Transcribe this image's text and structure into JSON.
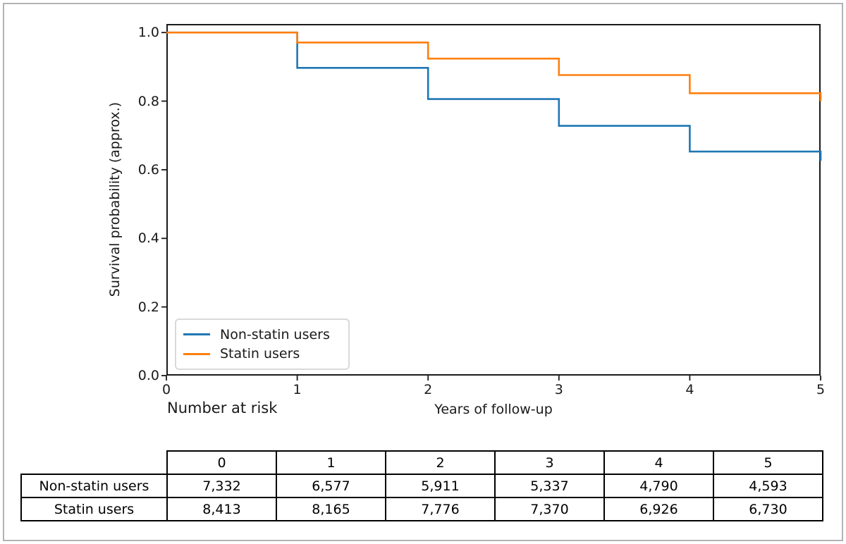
{
  "figure": {
    "background": "#ffffff",
    "frame_border_color": "#b2b2b7",
    "text_color": "#1a1a1a"
  },
  "labels": {
    "number_at_risk": "Number at risk"
  },
  "chart_data": {
    "type": "line",
    "subtype": "step-after-survival-curve",
    "title": "",
    "xlabel": "Years of follow-up",
    "ylabel": "Survival probability (approx.)",
    "xlim": [
      0,
      5
    ],
    "ylim": [
      0,
      1.025
    ],
    "grid": false,
    "legend_position": "lower-left",
    "x": [
      0,
      1,
      2,
      3,
      4,
      5
    ],
    "xticks": [
      0,
      1,
      2,
      3,
      4,
      5
    ],
    "xtick_labels": [
      "0",
      "1",
      "2",
      "3",
      "4",
      "5"
    ],
    "ytick_values": [
      0.0,
      0.2,
      0.4,
      0.6,
      0.8,
      1.0
    ],
    "ytick_labels": [
      "0.0",
      "0.2",
      "0.4",
      "0.6",
      "0.8",
      "1.0"
    ],
    "series": [
      {
        "name": "Non-statin users",
        "color": "#1f77b4",
        "values": [
          1.0,
          0.897,
          0.806,
          0.728,
          0.653,
          0.626
        ]
      },
      {
        "name": "Statin users",
        "color": "#ff7f0e",
        "values": [
          1.0,
          0.971,
          0.924,
          0.876,
          0.823,
          0.8
        ]
      }
    ]
  },
  "risk_table": {
    "columns": [
      "0",
      "1",
      "2",
      "3",
      "4",
      "5"
    ],
    "rows": [
      {
        "label": "Non-statin users",
        "values": [
          "7,332",
          "6,577",
          "5,911",
          "5,337",
          "4,790",
          "4,593"
        ]
      },
      {
        "label": "Statin users",
        "values": [
          "8,413",
          "8,165",
          "7,776",
          "7,370",
          "6,926",
          "6,730"
        ]
      }
    ]
  }
}
